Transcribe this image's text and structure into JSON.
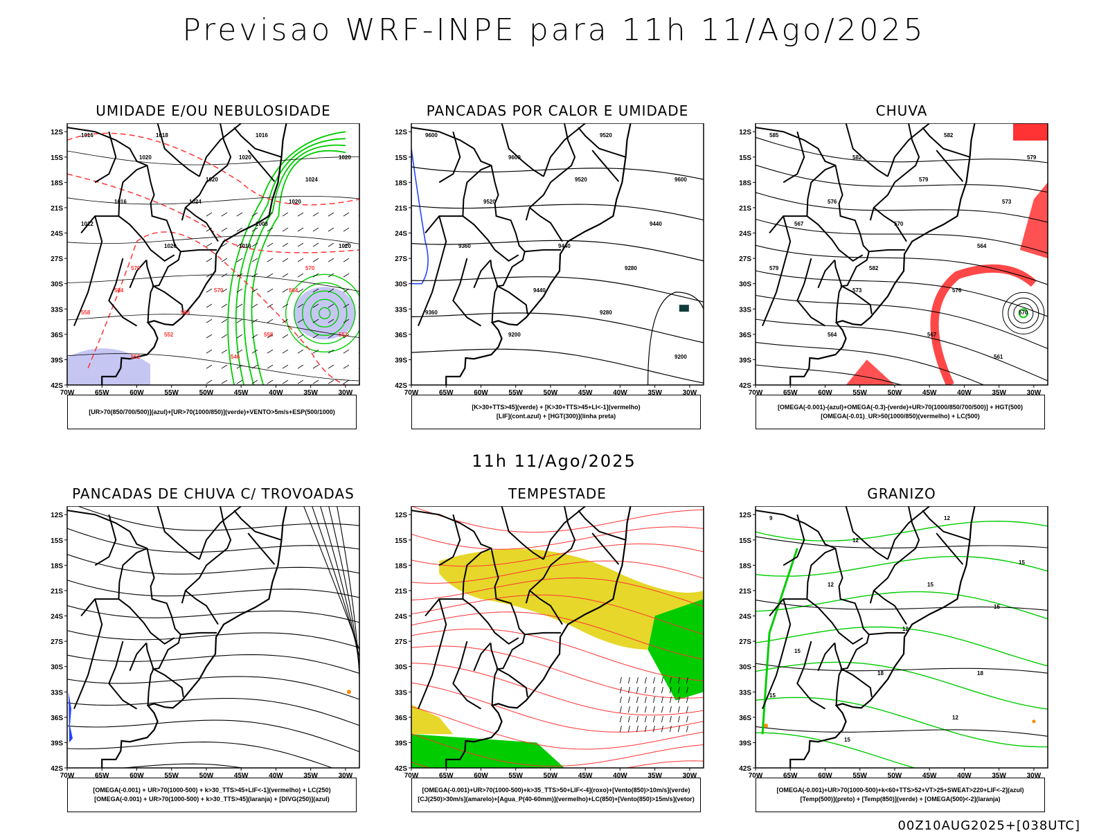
{
  "title": "Previsao WRF-INPE  para 11h 11/Ago/2025",
  "subtitle": "11h 11/Ago/2025",
  "footer": "00Z10AUG2025+[038UTC]",
  "lat_labels": [
    "12S",
    "15S",
    "18S",
    "21S",
    "24S",
    "27S",
    "30S",
    "33S",
    "36S",
    "39S",
    "42S"
  ],
  "lon_labels": [
    "70W",
    "65W",
    "60W",
    "55W",
    "50W",
    "45W",
    "40W",
    "35W",
    "30W"
  ],
  "colors": {
    "green": "#00cc00",
    "red": "#ff3333",
    "blue": "#2244ff",
    "lavender": "#b8b8f0",
    "yellow": "#e6d72a",
    "orange": "#ff8c00",
    "dark_teal": "#103a3a"
  },
  "panels": [
    {
      "title": "UMIDADE E/OU NEBULOSIDADE",
      "legend": [
        "[UR>70(850/700/500)](azul)+[UR>70(1000/850)](verde)+VENTO>5m/s+ESP(500/1000)"
      ],
      "contour_labels": [
        "1016",
        "1016",
        "1018",
        "1020",
        "1020",
        "1020",
        "1024",
        "1020",
        "1016",
        "1020",
        "1024",
        "1012",
        "1008",
        "1020",
        "1020",
        "1016",
        "570",
        "570",
        "570",
        "564",
        "564",
        "564",
        "558",
        "558",
        "552",
        "552",
        "546",
        "552"
      ]
    },
    {
      "title": "PANCADAS POR CALOR E UMIDADE",
      "legend": [
        "[K>30+TTS>45](verde) + [K>30+TTS>45+LI<-1](vermelho)",
        "[LIF](cont.azul) + [HGT(300)](linha preta)"
      ],
      "contour_labels": [
        "9600",
        "9520",
        "9600",
        "9600",
        "9520",
        "9520",
        "9440",
        "9440",
        "9360",
        "9280",
        "9440",
        "9360",
        "9280",
        "9200",
        "9200"
      ]
    },
    {
      "title": "CHUVA",
      "legend": [
        "[OMEGA(-0.001)-(azul)+OMEGA(-0.3)-(verde)+UR>70(1000/850/700/500)] + HGT(500)",
        "[OMEGA(-0.01)_UR>50(1000/850)(vermelho) + LC(500)"
      ],
      "contour_labels": [
        "585",
        "582",
        "582",
        "579",
        "579",
        "576",
        "573",
        "570",
        "567",
        "564",
        "582",
        "579",
        "576",
        "573",
        "570",
        "567",
        "564",
        "561"
      ]
    },
    {
      "title": "PANCADAS DE CHUVA C/ TROVOADAS",
      "legend": [
        "[OMEGA(-0.001) + UR>70(1000-500) + k>30_TTS>45+LIF<-1](vermelho) + LC(250)",
        "[OMEGA(-0.001) + UR>70(1000-500) + k>30_TTS>45](laranja) + [DIVG(250)](azul)"
      ],
      "contour_labels": []
    },
    {
      "title": "TEMPESTADE",
      "legend": [
        "[OMEGA(-0.001)+UR>70(1000-500)+k>35_TTS>50+LIF<-4](roxo)+[Vento(850)>10m/s](verde)",
        "[CJ(250)>30m/s](amarelo)+[Agua_P(40-60mm)](vermelho)+LC(850)+[Vento(850)>15m/s](vetor)"
      ],
      "contour_labels": []
    },
    {
      "title": "GRANIZO",
      "legend": [
        "[OMEGA(-0.001)+UR>70(1000-500)+k<60+TTS>52+VT>25+SWEAT>220+LIF<-2](azul)",
        "[Temp(500)](preto) + [Temp(850)](verde) + [OMEGA(500)<-2](laranja)"
      ],
      "contour_labels": [
        "9",
        "12",
        "12",
        "15",
        "15",
        "12",
        "15",
        "12",
        "15",
        "18",
        "18",
        "15",
        "12",
        "15"
      ]
    }
  ]
}
